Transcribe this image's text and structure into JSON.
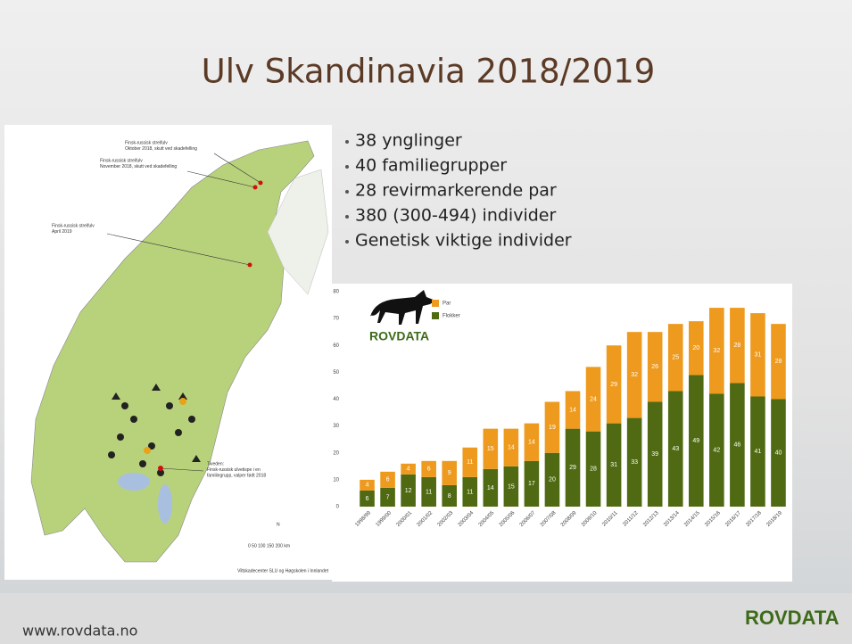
{
  "title": "Ulv Skandinavia 2018/2019",
  "bullets": [
    "38 ynglinger",
    "40 familiegrupper",
    "28 revirmarkerende par",
    "380 (300-494) individer",
    "Genetisk viktige individer"
  ],
  "map": {
    "annotations": [
      {
        "lines": [
          "Finsk-russisk streifulv",
          "Oktober 2018, skutt ved skadefelling"
        ]
      },
      {
        "lines": [
          "Finsk-russisk streifulv",
          "November 2018, skutt ved skadefelling"
        ]
      },
      {
        "lines": [
          "Finsk-russisk streifulv",
          "April 2019"
        ]
      },
      {
        "lines": [
          "Tiveden:",
          "Finsk-russisk ulvetispe i en",
          "familiegrupp, valper født 2018"
        ]
      }
    ],
    "north": "N",
    "scale": "0  50 100 150 200 km",
    "credit": "Viltskadecenter SLU og Høgskolen i Innlandet"
  },
  "chart_logo": "ROVDATA",
  "chart_data": {
    "type": "stacked-bar",
    "categories": [
      "1998/99",
      "1999/00",
      "2000/01",
      "2001/02",
      "2002/03",
      "2003/04",
      "2004/05",
      "2005/06",
      "2006/07",
      "2007/08",
      "2008/09",
      "2009/10",
      "2010/11",
      "2011/12",
      "2012/13",
      "2013/14",
      "2014/15",
      "2015/16",
      "2016/17",
      "2017/18",
      "2018/19"
    ],
    "series": [
      {
        "name": "Flokker",
        "color": "#4f6a12",
        "values": [
          6,
          7,
          12,
          11,
          8,
          11,
          14,
          15,
          17,
          20,
          29,
          28,
          31,
          33,
          39,
          43,
          49,
          42,
          46,
          41,
          40
        ]
      },
      {
        "name": "Par",
        "color": "#ee9a1e",
        "values": [
          4,
          6,
          4,
          6,
          9,
          11,
          15,
          14,
          14,
          19,
          14,
          24,
          29,
          32,
          26,
          25,
          20,
          32,
          28,
          31,
          28
        ]
      }
    ],
    "ylim": [
      0,
      80
    ],
    "yticks": [
      0,
      10,
      20,
      30,
      40,
      50,
      60,
      70,
      80
    ],
    "grid": false
  },
  "footer": {
    "url": "www.rovdata.no",
    "logo": "ROVDATA"
  }
}
